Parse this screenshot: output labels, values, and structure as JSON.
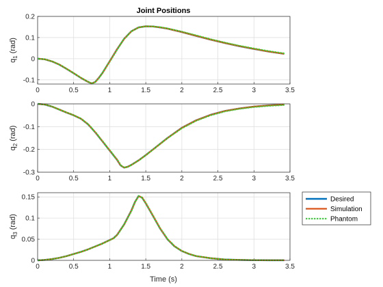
{
  "chart_data": {
    "type": "line",
    "title": "Joint Positions",
    "xlabel": "Time (s)",
    "series_names": [
      "Desired",
      "Simulation",
      "Phantom"
    ],
    "legend_position": "right",
    "grid": true,
    "colors": {
      "Desired": "#0072BD",
      "Simulation": "#D95319",
      "Phantom": "#22DD22"
    },
    "xlim": [
      0,
      3.5
    ],
    "xticks": [
      "0",
      "0.5",
      "1",
      "1.5",
      "2",
      "2.5",
      "3",
      "3.5"
    ],
    "subplots": [
      {
        "ylabel": "q",
        "ylabel_sub": "1",
        "ylabel_unit": " (rad)",
        "ylim": [
          -0.12,
          0.2
        ],
        "yticks": [
          "0.2",
          "0.1",
          "0",
          "-0.1"
        ],
        "x": [
          0,
          0.1,
          0.2,
          0.3,
          0.4,
          0.5,
          0.6,
          0.7,
          0.75,
          0.8,
          0.85,
          0.9,
          1.0,
          1.1,
          1.2,
          1.3,
          1.4,
          1.5,
          1.6,
          1.7,
          1.8,
          2.0,
          2.2,
          2.4,
          2.6,
          2.8,
          3.0,
          3.2,
          3.42
        ],
        "series": [
          {
            "name": "Desired",
            "values": [
              0,
              -0.003,
              -0.013,
              -0.028,
              -0.048,
              -0.069,
              -0.091,
              -0.11,
              -0.117,
              -0.11,
              -0.09,
              -0.067,
              -0.012,
              0.044,
              0.094,
              0.13,
              0.148,
              0.153,
              0.152,
              0.148,
              0.142,
              0.126,
              0.108,
              0.09,
              0.074,
              0.059,
              0.046,
              0.034,
              0.023
            ]
          },
          {
            "name": "Simulation",
            "values": [
              0,
              -0.003,
              -0.013,
              -0.028,
              -0.048,
              -0.069,
              -0.091,
              -0.11,
              -0.117,
              -0.11,
              -0.09,
              -0.067,
              -0.012,
              0.044,
              0.094,
              0.13,
              0.148,
              0.153,
              0.152,
              0.148,
              0.142,
              0.126,
              0.108,
              0.09,
              0.074,
              0.059,
              0.046,
              0.034,
              0.023
            ]
          },
          {
            "name": "Phantom",
            "values": [
              0,
              -0.003,
              -0.013,
              -0.028,
              -0.048,
              -0.069,
              -0.091,
              -0.11,
              -0.117,
              -0.11,
              -0.09,
              -0.067,
              -0.012,
              0.044,
              0.094,
              0.13,
              0.148,
              0.153,
              0.152,
              0.149,
              0.143,
              0.128,
              0.11,
              0.092,
              0.076,
              0.061,
              0.048,
              0.036,
              0.025
            ]
          }
        ]
      },
      {
        "ylabel": "q",
        "ylabel_sub": "2",
        "ylabel_unit": " (rad)",
        "ylim": [
          -0.3,
          0
        ],
        "yticks": [
          "0",
          "-0.1",
          "-0.2",
          "-0.3"
        ],
        "x": [
          0,
          0.1,
          0.2,
          0.3,
          0.4,
          0.5,
          0.6,
          0.7,
          0.8,
          0.9,
          1.0,
          1.1,
          1.15,
          1.2,
          1.25,
          1.3,
          1.4,
          1.5,
          1.6,
          1.8,
          2.0,
          2.2,
          2.4,
          2.6,
          2.8,
          3.0,
          3.2,
          3.42
        ],
        "series": [
          {
            "name": "Desired",
            "values": [
              0,
              -0.003,
              -0.012,
              -0.025,
              -0.038,
              -0.05,
              -0.065,
              -0.09,
              -0.125,
              -0.165,
              -0.205,
              -0.245,
              -0.27,
              -0.28,
              -0.276,
              -0.268,
              -0.248,
              -0.225,
              -0.2,
              -0.15,
              -0.105,
              -0.072,
              -0.048,
              -0.031,
              -0.02,
              -0.012,
              -0.007,
              -0.003
            ]
          },
          {
            "name": "Simulation",
            "values": [
              0,
              -0.003,
              -0.012,
              -0.025,
              -0.038,
              -0.05,
              -0.065,
              -0.09,
              -0.125,
              -0.165,
              -0.205,
              -0.245,
              -0.27,
              -0.28,
              -0.276,
              -0.268,
              -0.248,
              -0.225,
              -0.2,
              -0.15,
              -0.105,
              -0.072,
              -0.048,
              -0.031,
              -0.02,
              -0.012,
              -0.007,
              -0.003
            ]
          },
          {
            "name": "Phantom",
            "values": [
              0,
              -0.003,
              -0.012,
              -0.025,
              -0.038,
              -0.05,
              -0.065,
              -0.09,
              -0.125,
              -0.165,
              -0.205,
              -0.245,
              -0.27,
              -0.28,
              -0.276,
              -0.268,
              -0.248,
              -0.225,
              -0.2,
              -0.15,
              -0.107,
              -0.074,
              -0.05,
              -0.033,
              -0.022,
              -0.014,
              -0.009,
              -0.005
            ]
          }
        ]
      },
      {
        "ylabel": "q",
        "ylabel_sub": "3",
        "ylabel_unit": " (rad)",
        "ylim": [
          0,
          0.16
        ],
        "yticks": [
          "0.15",
          "0.1",
          "0.05",
          "0"
        ],
        "x": [
          0,
          0.1,
          0.2,
          0.3,
          0.4,
          0.5,
          0.6,
          0.7,
          0.8,
          0.9,
          1.0,
          1.05,
          1.1,
          1.2,
          1.3,
          1.35,
          1.4,
          1.45,
          1.5,
          1.6,
          1.7,
          1.8,
          1.9,
          2.0,
          2.1,
          2.2,
          2.4,
          2.6,
          2.8,
          3.0,
          3.2,
          3.42
        ],
        "series": [
          {
            "name": "Desired",
            "values": [
              0,
              0.001,
              0.003,
              0.006,
              0.01,
              0.015,
              0.02,
              0.026,
              0.033,
              0.04,
              0.048,
              0.052,
              0.06,
              0.085,
              0.118,
              0.138,
              0.152,
              0.148,
              0.135,
              0.105,
              0.075,
              0.05,
              0.033,
              0.022,
              0.015,
              0.01,
              0.005,
              0.002,
              0.001,
              0.0005,
              0.0002,
              0.0001
            ]
          },
          {
            "name": "Simulation",
            "values": [
              0,
              0.001,
              0.003,
              0.006,
              0.01,
              0.015,
              0.02,
              0.026,
              0.033,
              0.04,
              0.048,
              0.052,
              0.06,
              0.085,
              0.118,
              0.138,
              0.152,
              0.148,
              0.135,
              0.105,
              0.075,
              0.05,
              0.033,
              0.022,
              0.015,
              0.01,
              0.005,
              0.002,
              0.001,
              0.0005,
              0.0002,
              0.0001
            ]
          },
          {
            "name": "Phantom",
            "values": [
              0,
              0.001,
              0.003,
              0.006,
              0.01,
              0.015,
              0.02,
              0.026,
              0.033,
              0.04,
              0.048,
              0.052,
              0.06,
              0.085,
              0.118,
              0.138,
              0.152,
              0.148,
              0.135,
              0.105,
              0.075,
              0.05,
              0.033,
              0.022,
              0.015,
              0.01,
              0.005,
              0.002,
              0.001,
              0.0005,
              0.0002,
              0.0001
            ]
          }
        ]
      }
    ]
  }
}
